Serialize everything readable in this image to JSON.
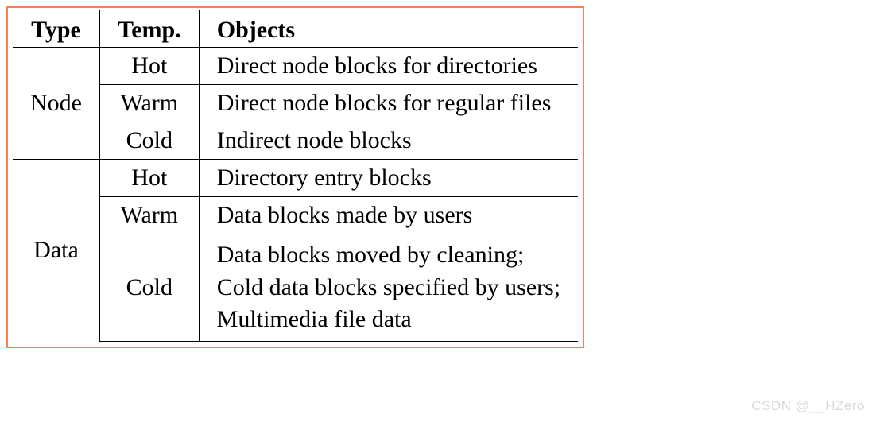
{
  "table": {
    "columns": [
      "Type",
      "Temp.",
      "Objects"
    ],
    "column_align": [
      "center",
      "center",
      "left"
    ],
    "font_family": "Times New Roman",
    "header_fontsize": 30,
    "body_fontsize": 30,
    "header_fontweight": "bold",
    "border_color_outer": "#ff7f50",
    "border_color_inner": "#000000",
    "border_width_thick": 1.5,
    "border_width_thin": 1.0,
    "background_color": "#ffffff",
    "text_color": "#000000",
    "groups": [
      {
        "type": "Node",
        "rows": [
          {
            "temp": "Hot",
            "objects": "Direct node blocks for directories"
          },
          {
            "temp": "Warm",
            "objects": "Direct node blocks for regular files"
          },
          {
            "temp": "Cold",
            "objects": "Indirect node blocks"
          }
        ]
      },
      {
        "type": "Data",
        "rows": [
          {
            "temp": "Hot",
            "objects": "Directory entry blocks"
          },
          {
            "temp": "Warm",
            "objects": "Data blocks made by users"
          },
          {
            "temp": "Cold",
            "objects": "Data blocks moved by cleaning;\nCold data blocks specified by users;\nMultimedia file data"
          }
        ]
      }
    ]
  },
  "watermark": "CSDN @__HZero"
}
